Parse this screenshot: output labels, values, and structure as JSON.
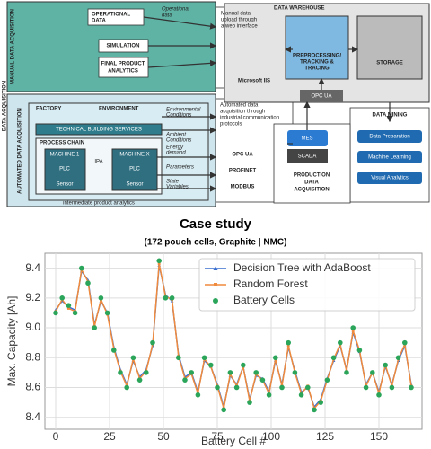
{
  "diagram": {
    "data_acquisition": "DATA ACQUISITION",
    "manual": "MANUAL DATA ACQUISITION",
    "automated": "AUTOMATED DATA ACQUISITION",
    "operational_data": [
      "OPERATIONAL",
      "DATA"
    ],
    "operational_flow": [
      "Operational",
      "data"
    ],
    "simulation": "SIMULATION",
    "final_product": [
      "FINAL PRODUCT",
      "ANALYTICS"
    ],
    "manual_upload": [
      "Manual data",
      "upload through",
      "a web interface"
    ],
    "iis": "Microsoft IIS",
    "warehouse": "DATA WAREHOUSE",
    "preprocessing": [
      "PREPROCESSING/",
      "TRACKING &",
      "TRACING"
    ],
    "storage": "STORAGE",
    "opc_top": "OPC UA",
    "mining": "DATA MINING",
    "mining_steps": [
      "Data Preparation",
      "Machine Learning",
      "Visual Analytics"
    ],
    "factory": "FACTORY",
    "environment": "ENVIRONMENT",
    "tbs": "TECHNICAL BUILDING SERVICES",
    "process_chain": "PROCESS CHAIN",
    "machine_1": "MACHINE 1",
    "machine_x": "MACHINE X",
    "plc": [
      "PLC",
      "PLC"
    ],
    "ipa": "IPA",
    "sensor": [
      "Sensor",
      "Sensor"
    ],
    "intermediate": "intermediate product analytics",
    "environmental": [
      "Environmental",
      "Conditions"
    ],
    "ambient": [
      "Ambient",
      "Conditions"
    ],
    "energy": [
      "Energy",
      "demand"
    ],
    "parameters": "Parameters",
    "state": [
      "State",
      "Variables"
    ],
    "automated_text": [
      "Automated data",
      "acquisition through",
      "industrial communication",
      "protocols"
    ],
    "protocols": [
      "OPC UA",
      "PROFINET",
      "MODBUS"
    ],
    "mes": "MES",
    "scada": "SCADA",
    "production": [
      "PRODUCTION",
      "DATA",
      "ACQUISITION"
    ]
  },
  "chart_data": {
    "type": "line",
    "title": "Case study",
    "subtitle": "(172 pouch cells, Graphite | NMC)",
    "xlabel": "Battery Cell #",
    "ylabel": "Max. Capacity [Ah]",
    "x": [
      0,
      3,
      6,
      9,
      12,
      15,
      18,
      21,
      24,
      27,
      30,
      33,
      36,
      39,
      42,
      45,
      48,
      51,
      54,
      57,
      60,
      63,
      66,
      69,
      72,
      75,
      78,
      81,
      84,
      87,
      90,
      93,
      96,
      99,
      102,
      105,
      108,
      111,
      114,
      117,
      120,
      123,
      126,
      129,
      132,
      135,
      138,
      141,
      144,
      147,
      150,
      153,
      156,
      159,
      162,
      165
    ],
    "series": [
      {
        "name": "Decision Tree with AdaBoost",
        "color": "#3a6fd0",
        "marker": "triangle",
        "values": [
          9.12,
          9.18,
          9.14,
          9.12,
          9.38,
          9.32,
          9.02,
          9.18,
          9.1,
          8.87,
          8.72,
          8.62,
          8.78,
          8.67,
          8.72,
          8.88,
          9.42,
          9.22,
          9.18,
          8.82,
          8.67,
          8.7,
          8.57,
          8.78,
          8.74,
          8.62,
          8.47,
          8.68,
          8.62,
          8.74,
          8.52,
          8.68,
          8.66,
          8.57,
          8.78,
          8.62,
          8.87,
          8.71,
          8.57,
          8.6,
          8.47,
          8.52,
          8.66,
          8.78,
          8.88,
          8.72,
          8.97,
          8.84,
          8.62,
          8.7,
          8.57,
          8.74,
          8.62,
          8.78,
          8.88,
          8.62
        ]
      },
      {
        "name": "Random Forest",
        "color": "#f08a3c",
        "marker": "square",
        "values": [
          9.11,
          9.19,
          9.13,
          9.11,
          9.39,
          9.31,
          9.01,
          9.19,
          9.09,
          8.86,
          8.71,
          8.61,
          8.79,
          8.66,
          8.71,
          8.89,
          9.43,
          9.21,
          9.19,
          8.81,
          8.66,
          8.69,
          8.56,
          8.79,
          8.74,
          8.61,
          8.46,
          8.69,
          8.61,
          8.74,
          8.51,
          8.69,
          8.65,
          8.56,
          8.79,
          8.61,
          8.88,
          8.7,
          8.56,
          8.61,
          8.46,
          8.51,
          8.65,
          8.79,
          8.89,
          8.71,
          8.98,
          8.85,
          8.61,
          8.7,
          8.56,
          8.75,
          8.61,
          8.79,
          8.89,
          8.61
        ]
      },
      {
        "name": "Battery Cells",
        "color": "#2aa55a",
        "marker": "circle",
        "values": [
          9.1,
          9.2,
          9.15,
          9.1,
          9.4,
          9.3,
          9.0,
          9.2,
          9.1,
          8.85,
          8.7,
          8.6,
          8.8,
          8.65,
          8.7,
          8.9,
          9.45,
          9.2,
          9.2,
          8.8,
          8.65,
          8.7,
          8.55,
          8.8,
          8.75,
          8.6,
          8.45,
          8.7,
          8.6,
          8.75,
          8.5,
          8.7,
          8.65,
          8.55,
          8.8,
          8.6,
          8.9,
          8.7,
          8.55,
          8.6,
          8.45,
          8.5,
          8.65,
          8.8,
          8.9,
          8.7,
          9.0,
          8.85,
          8.6,
          8.7,
          8.55,
          8.75,
          8.6,
          8.8,
          8.9,
          8.6
        ]
      }
    ],
    "xlim": [
      -5,
      170
    ],
    "xticks": [
      0,
      25,
      50,
      75,
      100,
      125,
      150
    ],
    "ylim": [
      8.32,
      9.5
    ],
    "yticks": [
      8.4,
      8.6,
      8.8,
      {
        "value": 9,
        "label": "9.0"
      },
      9.2,
      9.4
    ],
    "grid": true,
    "legend": "upper right"
  }
}
